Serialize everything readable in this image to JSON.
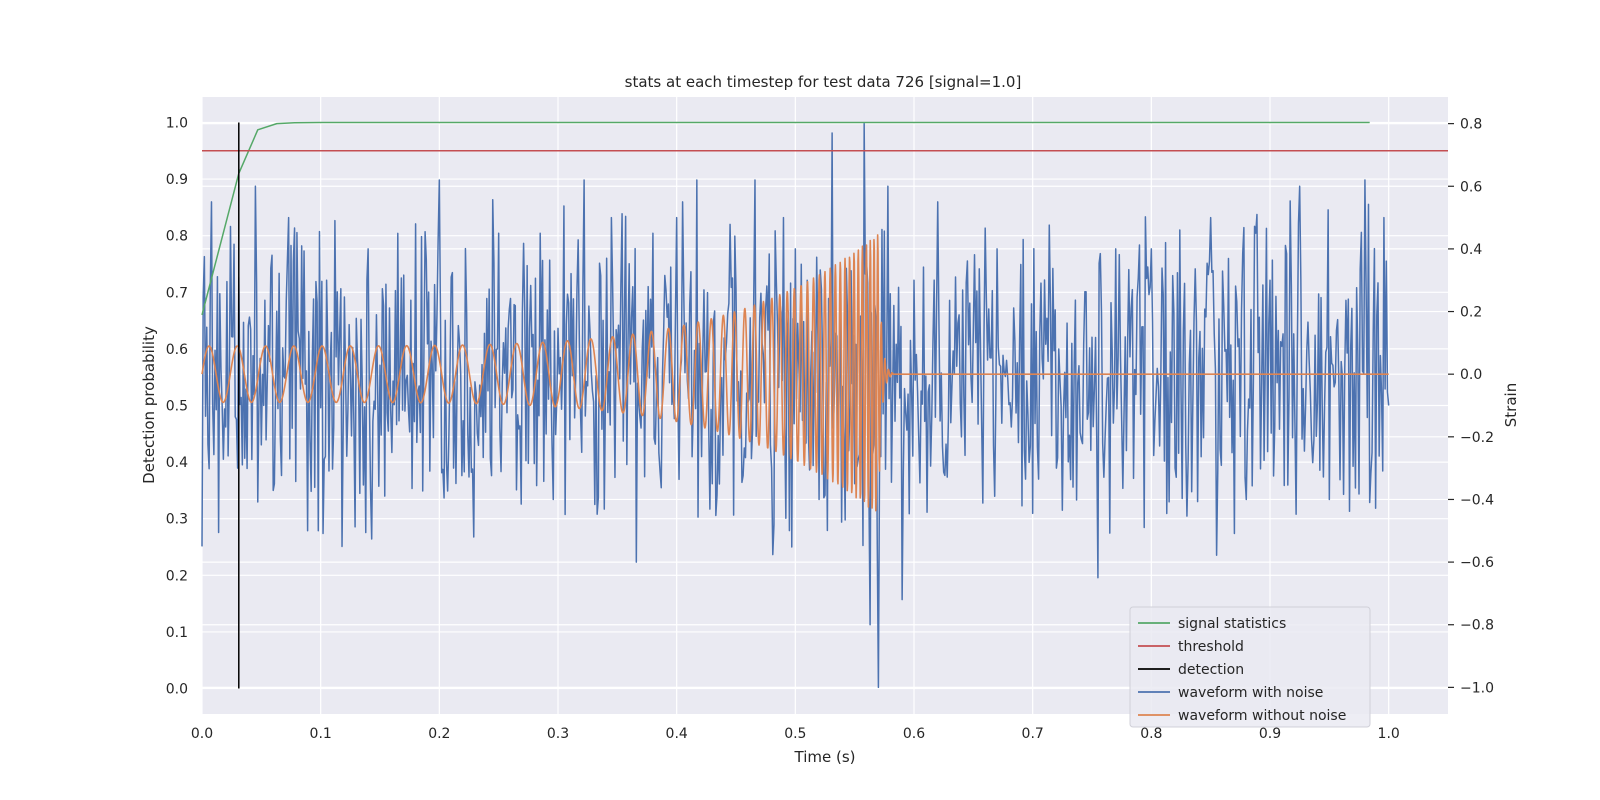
{
  "chart_data": {
    "type": "line",
    "title": "stats at each timestep for test data 726 [signal=1.0]",
    "xlabel": "Time (s)",
    "ylabel": "Detection probability",
    "y2label": "Strain",
    "xlim": [
      0.0,
      1.05
    ],
    "ylim": [
      -0.045,
      1.045
    ],
    "y2lim": [
      -1.085,
      0.885
    ],
    "xticks": [
      "0.0",
      "0.1",
      "0.2",
      "0.3",
      "0.4",
      "0.5",
      "0.6",
      "0.7",
      "0.8",
      "0.9",
      "1.0"
    ],
    "yticks": [
      "0.0",
      "0.1",
      "0.2",
      "0.3",
      "0.4",
      "0.5",
      "0.6",
      "0.7",
      "0.8",
      "0.9",
      "1.0"
    ],
    "y2ticks": [
      "−1.0",
      "−0.8",
      "−0.6",
      "−0.4",
      "−0.2",
      "0.0",
      "0.2",
      "0.4",
      "0.6",
      "0.8"
    ],
    "grid": true,
    "legend_position": "lower-right",
    "colors": {
      "plot_bg": "#eaeaf2",
      "grid": "#ffffff",
      "signal_statistics": "#55a868",
      "threshold": "#c44e52",
      "detection": "#000000",
      "waveform_with_noise": "#4c72b0",
      "waveform_without_noise": "#dd8452"
    },
    "series": [
      {
        "name": "signal statistics",
        "axis": "left",
        "x": [
          0.0,
          0.031,
          0.047,
          0.063,
          0.078,
          0.1,
          0.15,
          0.2,
          0.3,
          0.4,
          0.5,
          0.6,
          0.7,
          0.8,
          0.9,
          0.984
        ],
        "y": [
          0.66,
          0.91,
          0.987,
          0.998,
          0.9995,
          1.0,
          1.0,
          1.0,
          1.0,
          1.0,
          1.0,
          1.0,
          1.0,
          1.0,
          1.0,
          1.0
        ]
      },
      {
        "name": "threshold",
        "axis": "left",
        "x": [
          0.0,
          1.05
        ],
        "y": [
          0.95,
          0.95
        ]
      },
      {
        "name": "detection",
        "axis": "left",
        "x": [
          0.031,
          0.031
        ],
        "y": [
          0.0,
          1.0
        ]
      },
      {
        "name": "waveform with noise",
        "axis": "right",
        "x_start": 0.0,
        "x_end": 1.0,
        "y_peaks": [
          [
            0.0,
            -0.55
          ],
          [
            0.004,
            0.15
          ],
          [
            0.008,
            0.55
          ],
          [
            0.017,
            -0.1
          ],
          [
            0.025,
            0.12
          ],
          [
            0.03,
            -0.3
          ],
          [
            0.045,
            0.6
          ],
          [
            0.061,
            -0.35
          ],
          [
            0.073,
            0.5
          ],
          [
            0.089,
            -0.5
          ],
          [
            0.098,
            -0.5
          ],
          [
            0.105,
            0.3
          ],
          [
            0.118,
            -0.55
          ],
          [
            0.14,
            0.4
          ],
          [
            0.16,
            -0.25
          ],
          [
            0.18,
            0.48
          ],
          [
            0.2,
            0.62
          ],
          [
            0.212,
            -0.3
          ],
          [
            0.229,
            -0.52
          ],
          [
            0.25,
            0.45
          ],
          [
            0.27,
            0.2
          ],
          [
            0.285,
            0.45
          ],
          [
            0.296,
            -0.4
          ],
          [
            0.322,
            0.62
          ],
          [
            0.345,
            0.5
          ],
          [
            0.366,
            -0.6
          ],
          [
            0.38,
            0.45
          ],
          [
            0.4,
            0.5
          ],
          [
            0.417,
            0.62
          ],
          [
            0.43,
            -0.35
          ],
          [
            0.448,
            -0.45
          ],
          [
            0.466,
            0.62
          ],
          [
            0.48,
            -0.3
          ],
          [
            0.49,
            0.5
          ],
          [
            0.5,
            0.4
          ],
          [
            0.51,
            0.3
          ],
          [
            0.52,
            -0.4
          ],
          [
            0.531,
            0.77
          ],
          [
            0.55,
            -0.35
          ],
          [
            0.558,
            0.8
          ],
          [
            0.563,
            -0.8
          ],
          [
            0.57,
            -1.0
          ],
          [
            0.578,
            0.6
          ],
          [
            0.59,
            -0.72
          ],
          [
            0.6,
            0.3
          ],
          [
            0.62,
            0.55
          ],
          [
            0.64,
            -0.2
          ],
          [
            0.67,
            0.4
          ],
          [
            0.69,
            0.35
          ],
          [
            0.72,
            -0.3
          ],
          [
            0.755,
            -0.65
          ],
          [
            0.77,
            0.4
          ],
          [
            0.8,
            0.4
          ],
          [
            0.82,
            -0.3
          ],
          [
            0.85,
            0.5
          ],
          [
            0.88,
            -0.4
          ],
          [
            0.9,
            0.3
          ],
          [
            0.925,
            0.6
          ],
          [
            0.95,
            -0.4
          ],
          [
            0.98,
            0.62
          ],
          [
            0.986,
            -0.25
          ],
          [
            0.996,
            0.5
          ],
          [
            1.0,
            -0.1
          ]
        ]
      },
      {
        "name": "waveform without noise",
        "axis": "right",
        "x_start": 0.0,
        "x_end": 1.0,
        "merger_time": 0.57,
        "amplitude_start": 0.09,
        "amplitude_peak": 0.45,
        "start_frequency_hz": 42.0,
        "end_frequency_hz": 330.0
      }
    ]
  }
}
